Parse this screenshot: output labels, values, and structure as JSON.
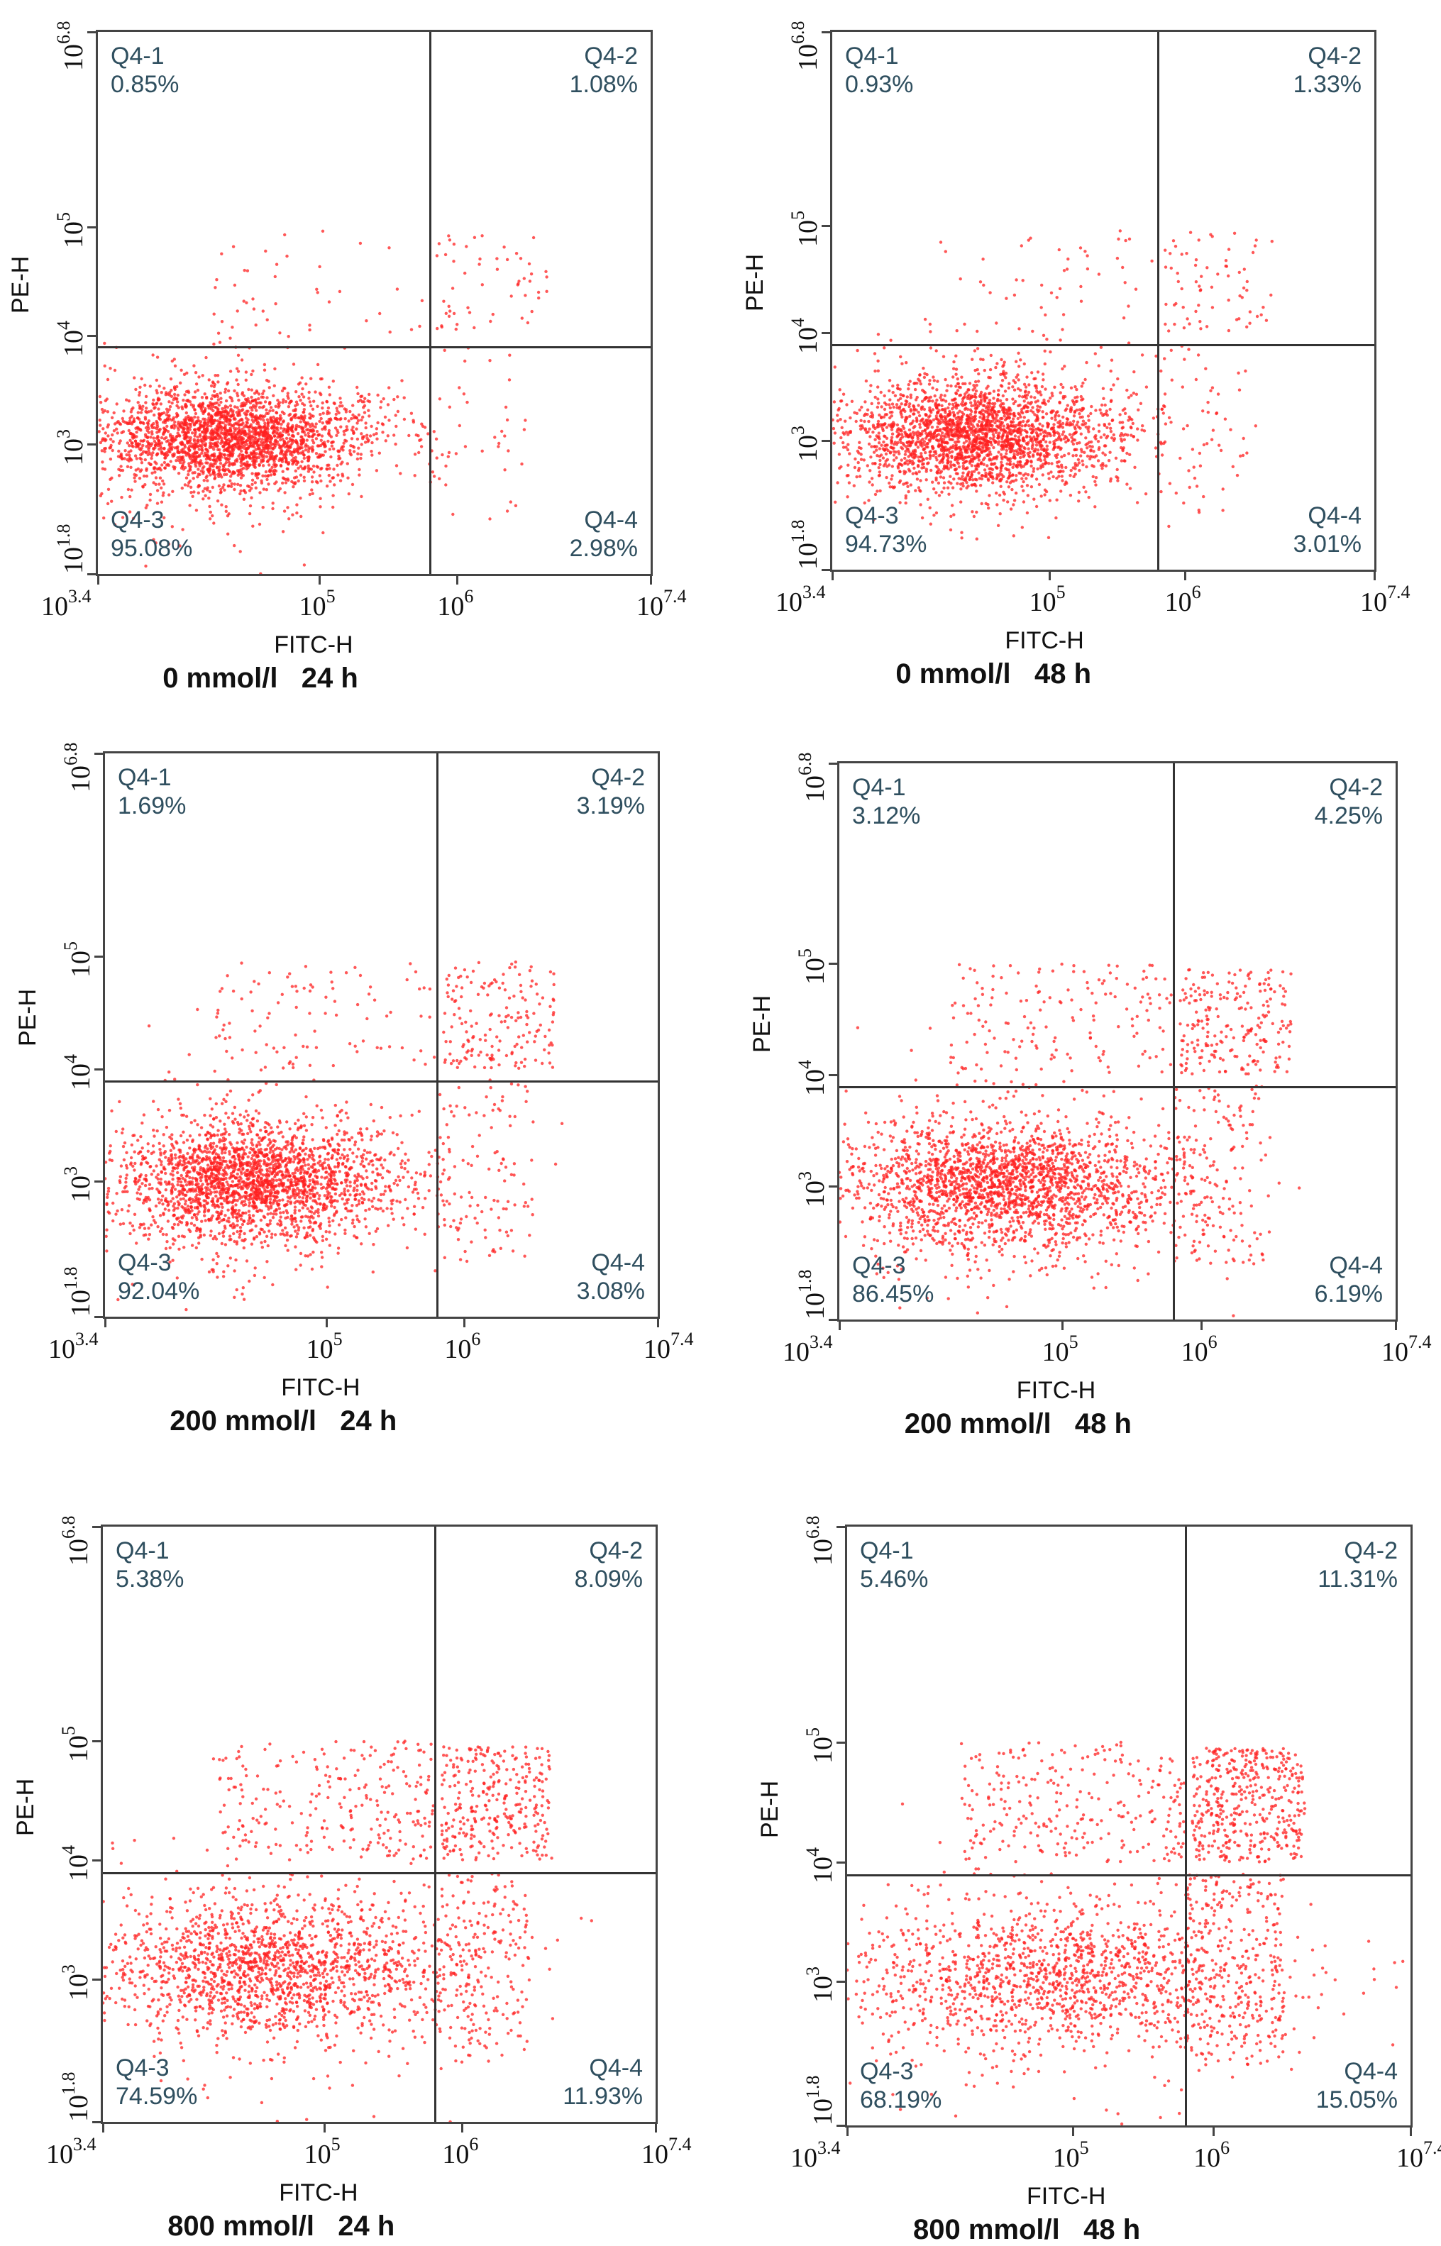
{
  "chart_data": [
    {
      "type": "scatter",
      "caption": "0 mmol/l   24 h",
      "xlabel": "FITC-H",
      "ylabel": "PE-H",
      "quadrants": {
        "q1": {
          "name": "Q4-1",
          "pct": "0.85%"
        },
        "q2": {
          "name": "Q4-2",
          "pct": "1.08%"
        },
        "q3": {
          "name": "Q4-3",
          "pct": "95.08%"
        },
        "q4": {
          "name": "Q4-4",
          "pct": "2.98%"
        }
      }
    },
    {
      "type": "scatter",
      "caption": "0 mmol/l   48 h",
      "xlabel": "FITC-H",
      "ylabel": "PE-H",
      "quadrants": {
        "q1": {
          "name": "Q4-1",
          "pct": "0.93%"
        },
        "q2": {
          "name": "Q4-2",
          "pct": "1.33%"
        },
        "q3": {
          "name": "Q4-3",
          "pct": "94.73%"
        },
        "q4": {
          "name": "Q4-4",
          "pct": "3.01%"
        }
      }
    },
    {
      "type": "scatter",
      "caption": "200 mmol/l   24 h",
      "xlabel": "FITC-H",
      "ylabel": "PE-H",
      "quadrants": {
        "q1": {
          "name": "Q4-1",
          "pct": "1.69%"
        },
        "q2": {
          "name": "Q4-2",
          "pct": "3.19%"
        },
        "q3": {
          "name": "Q4-3",
          "pct": "92.04%"
        },
        "q4": {
          "name": "Q4-4",
          "pct": "3.08%"
        }
      }
    },
    {
      "type": "scatter",
      "caption": "200 mmol/l   48 h",
      "xlabel": "FITC-H",
      "ylabel": "PE-H",
      "quadrants": {
        "q1": {
          "name": "Q4-1",
          "pct": "3.12%"
        },
        "q2": {
          "name": "Q4-2",
          "pct": "4.25%"
        },
        "q3": {
          "name": "Q4-3",
          "pct": "86.45%"
        },
        "q4": {
          "name": "Q4-4",
          "pct": "6.19%"
        }
      }
    },
    {
      "type": "scatter",
      "caption": "800 mmol/l   24 h",
      "xlabel": "FITC-H",
      "ylabel": "PE-H",
      "quadrants": {
        "q1": {
          "name": "Q4-1",
          "pct": "5.38%"
        },
        "q2": {
          "name": "Q4-2",
          "pct": "8.09%"
        },
        "q3": {
          "name": "Q4-3",
          "pct": "74.59%"
        },
        "q4": {
          "name": "Q4-4",
          "pct": "11.93%"
        }
      }
    },
    {
      "type": "scatter",
      "caption": "800 mmol/l   48 h",
      "xlabel": "FITC-H",
      "ylabel": "PE-H",
      "quadrants": {
        "q1": {
          "name": "Q4-1",
          "pct": "5.46%"
        },
        "q2": {
          "name": "Q4-2",
          "pct": "11.31%"
        },
        "q3": {
          "name": "Q4-3",
          "pct": "68.19%"
        },
        "q4": {
          "name": "Q4-4",
          "pct": "15.05%"
        }
      }
    }
  ],
  "axes": {
    "x_ticks": [
      {
        "base": "10",
        "exp": "3.4"
      },
      {
        "base": "10",
        "exp": "5"
      },
      {
        "base": "10",
        "exp": "6"
      },
      {
        "base": "10",
        "exp": "7.4"
      }
    ],
    "y_ticks": [
      {
        "base": "10",
        "exp": "1.8"
      },
      {
        "base": "10",
        "exp": "3"
      },
      {
        "base": "10",
        "exp": "4"
      },
      {
        "base": "10",
        "exp": "5"
      },
      {
        "base": "10",
        "exp": "6.8"
      }
    ],
    "xlim_log10": [
      3.4,
      7.4
    ],
    "ylim_log10": [
      1.8,
      6.8
    ],
    "x_gate_log10": 5.8,
    "y_gate_log10": 3.9,
    "dot_color": "#ff2020"
  }
}
